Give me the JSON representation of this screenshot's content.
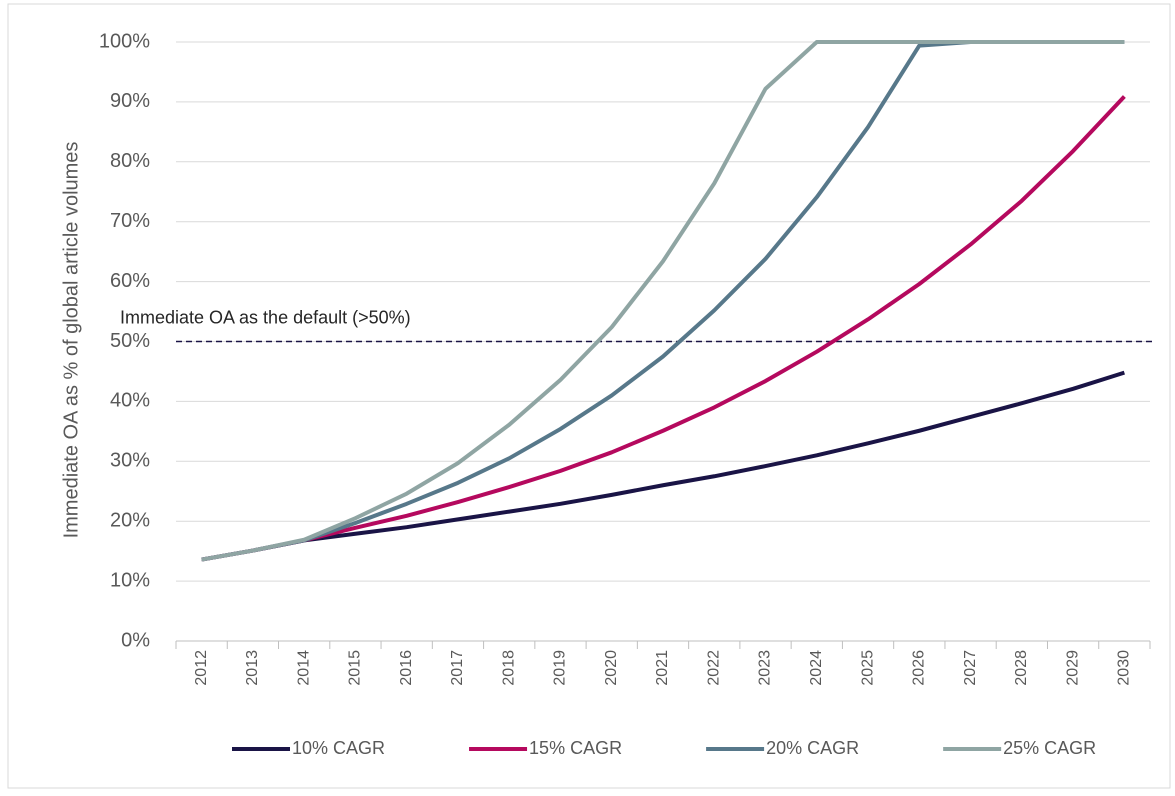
{
  "chart_data": {
    "type": "line",
    "y_label": "Immediate OA as % of global article volumes",
    "categories": [
      "2012",
      "2013",
      "2014",
      "2015",
      "2016",
      "2017",
      "2018",
      "2019",
      "2020",
      "2021",
      "2022",
      "2023",
      "2024",
      "2025",
      "2026",
      "2027",
      "2028",
      "2029",
      "2030"
    ],
    "series": [
      {
        "name": "10% CAGR",
        "color": "#1a1446",
        "values": [
          13.6,
          15.1,
          16.8,
          17.9,
          19.0,
          20.3,
          21.6,
          22.9,
          24.4,
          26.0,
          27.5,
          29.2,
          31.0,
          33.0,
          35.1,
          37.4,
          39.7,
          42.1,
          44.8
        ]
      },
      {
        "name": "15% CAGR",
        "color": "#b5095e",
        "values": [
          13.6,
          15.1,
          16.8,
          18.9,
          20.9,
          23.2,
          25.7,
          28.4,
          31.5,
          35.1,
          39.0,
          43.4,
          48.3,
          53.7,
          59.6,
          66.2,
          73.5,
          81.8,
          90.9
        ]
      },
      {
        "name": "20% CAGR",
        "color": "#57788a",
        "values": [
          13.6,
          15.1,
          16.8,
          19.7,
          22.9,
          26.4,
          30.5,
          35.4,
          41.0,
          47.5,
          55.2,
          63.8,
          74.1,
          85.8,
          99.4,
          100,
          100,
          100,
          100
        ]
      },
      {
        "name": "25% CAGR",
        "color": "#8fa5a3",
        "values": [
          13.6,
          15.1,
          16.9,
          20.5,
          24.6,
          29.7,
          36.1,
          43.6,
          52.4,
          63.4,
          76.4,
          92.2,
          100,
          100,
          100,
          100,
          100,
          100,
          100
        ]
      }
    ],
    "ylim": [
      0,
      100
    ],
    "yticks": [
      {
        "value": 0,
        "label": "0%"
      },
      {
        "value": 10,
        "label": "10%"
      },
      {
        "value": 20,
        "label": "20%"
      },
      {
        "value": 30,
        "label": "30%"
      },
      {
        "value": 40,
        "label": "40%"
      },
      {
        "value": 50,
        "label": "50%"
      },
      {
        "value": 60,
        "label": "60%"
      },
      {
        "value": 70,
        "label": "70%"
      },
      {
        "value": 80,
        "label": "80%"
      },
      {
        "value": 90,
        "label": "90%"
      },
      {
        "value": 100,
        "label": "100%"
      }
    ],
    "grid": true,
    "reference_line": {
      "value": 50,
      "label": "Immediate OA as the default (>50%)",
      "color": "#1a1446"
    },
    "legend": "bottom"
  }
}
